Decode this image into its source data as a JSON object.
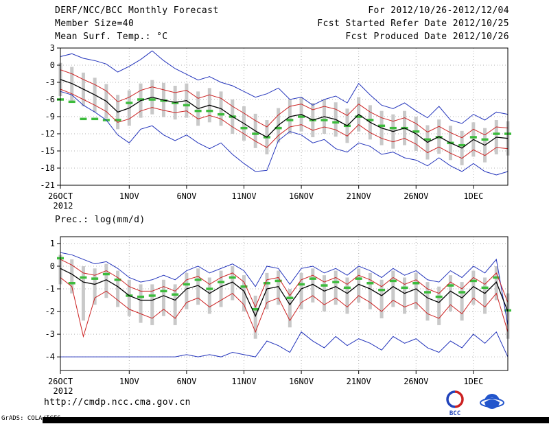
{
  "header": {
    "title": "DERF/NCC/BCC Monthly Forecast",
    "member_size": "Member Size=40",
    "for_range": "For 2012/10/26-2012/12/04",
    "refer_date": "Fcst Started Refer Date 2012/10/25",
    "produced_date": "Fcst Produced Date 2012/10/26"
  },
  "chart_data": [
    {
      "type": "line",
      "title": "Mean Surf. Temp.: °C",
      "xlabel": "",
      "ylabel": "°C",
      "ylim": [
        -21,
        3
      ],
      "yticks": [
        3,
        0,
        -3,
        -6,
        -9,
        -12,
        -15,
        -18,
        -21
      ],
      "grid": true,
      "legend": "none",
      "x_count": 40,
      "xticks": [
        {
          "pos": 0,
          "label": "26OCT",
          "sublabel": "2012"
        },
        {
          "pos": 6,
          "label": "1NOV"
        },
        {
          "pos": 11,
          "label": "6NOV"
        },
        {
          "pos": 16,
          "label": "11NOV"
        },
        {
          "pos": 21,
          "label": "16NOV"
        },
        {
          "pos": 26,
          "label": "21NOV"
        },
        {
          "pos": 31,
          "label": "26NOV"
        },
        {
          "pos": 36,
          "label": "1DEC"
        }
      ],
      "grid_color": "#b0b0b0",
      "bars": {
        "name": "ensemble-spread",
        "color": "#c9c9c9",
        "hi": [
          0.4,
          -0.3,
          -1.3,
          -2.2,
          -3.3,
          -5.2,
          -4.4,
          -3.2,
          -2.6,
          -3.1,
          -3.6,
          -3.2,
          -4.6,
          -4.0,
          -4.6,
          -6.0,
          -7.2,
          -8.5,
          -9.6,
          -7.5,
          -6.0,
          -5.6,
          -6.6,
          -6.0,
          -6.5,
          -7.6,
          -5.6,
          -7.0,
          -8.0,
          -8.6,
          -8.0,
          -9.0,
          -10.5,
          -9.5,
          -10.6,
          -11.5,
          -10.0,
          -11.0,
          -9.6,
          -9.8
        ],
        "lo": [
          -5.4,
          -6.2,
          -7.2,
          -8.2,
          -9.3,
          -11.2,
          -10.6,
          -9.2,
          -8.6,
          -9.1,
          -9.5,
          -9.2,
          -10.6,
          -10.0,
          -10.6,
          -12.0,
          -13.2,
          -14.5,
          -15.6,
          -13.5,
          -12.0,
          -11.6,
          -12.6,
          -12.0,
          -12.5,
          -13.6,
          -11.6,
          -13.0,
          -14.0,
          -14.6,
          -14.0,
          -15.0,
          -16.5,
          -15.5,
          -16.6,
          -17.5,
          -16.0,
          -17.0,
          -15.6,
          -15.8
        ]
      },
      "series": [
        {
          "name": "ensemble-max",
          "color": "#2233bb",
          "style": "solid",
          "width": 1,
          "values": [
            1.5,
            2.0,
            1.2,
            0.8,
            0.2,
            -1.2,
            -0.2,
            1.0,
            2.5,
            0.8,
            -0.6,
            -1.6,
            -2.6,
            -2.0,
            -3.0,
            -3.6,
            -4.6,
            -5.6,
            -5.0,
            -4.0,
            -6.0,
            -5.6,
            -7.0,
            -6.0,
            -5.4,
            -6.6,
            -3.2,
            -5.2,
            -7.0,
            -7.6,
            -6.6,
            -8.0,
            -9.2,
            -7.2,
            -9.6,
            -10.2,
            -8.6,
            -9.6,
            -8.2,
            -8.6
          ]
        },
        {
          "name": "upper-quartile",
          "color": "#cc2222",
          "style": "solid",
          "width": 1,
          "values": [
            -0.8,
            -1.5,
            -2.5,
            -3.4,
            -4.5,
            -6.4,
            -5.6,
            -4.4,
            -3.8,
            -4.3,
            -4.8,
            -4.4,
            -5.8,
            -5.2,
            -5.8,
            -7.2,
            -8.4,
            -9.7,
            -10.8,
            -8.7,
            -7.2,
            -6.8,
            -7.8,
            -7.2,
            -7.7,
            -8.8,
            -6.8,
            -8.2,
            -9.2,
            -9.8,
            -9.2,
            -10.2,
            -11.7,
            -10.7,
            -11.8,
            -12.7,
            -11.2,
            -12.2,
            -10.8,
            -11.0
          ]
        },
        {
          "name": "ensemble-mean",
          "color": "#000000",
          "style": "solid",
          "width": 1.3,
          "values": [
            -2.5,
            -3.2,
            -4.2,
            -5.2,
            -6.3,
            -8.2,
            -7.5,
            -6.2,
            -5.6,
            -6.1,
            -6.5,
            -6.2,
            -7.6,
            -7.0,
            -7.6,
            -9.0,
            -10.2,
            -11.5,
            -12.6,
            -10.5,
            -9.0,
            -8.6,
            -9.6,
            -9.0,
            -9.5,
            -10.6,
            -8.6,
            -10.0,
            -11.0,
            -11.6,
            -11.0,
            -12.0,
            -13.5,
            -12.5,
            -13.6,
            -14.5,
            -13.0,
            -14.0,
            -12.6,
            -12.8
          ]
        },
        {
          "name": "lower-quartile",
          "color": "#cc2222",
          "style": "solid",
          "width": 1,
          "values": [
            -4.2,
            -5.0,
            -6.0,
            -7.0,
            -8.1,
            -10.0,
            -9.4,
            -8.0,
            -7.4,
            -7.9,
            -8.3,
            -8.0,
            -9.4,
            -8.8,
            -9.4,
            -10.8,
            -12.0,
            -13.3,
            -14.4,
            -12.3,
            -10.8,
            -10.4,
            -11.4,
            -10.8,
            -11.3,
            -12.4,
            -10.4,
            -11.8,
            -12.8,
            -13.4,
            -12.8,
            -13.8,
            -15.3,
            -14.3,
            -15.4,
            -16.3,
            -14.8,
            -15.8,
            -14.4,
            -14.6
          ]
        },
        {
          "name": "ensemble-min",
          "color": "#2233bb",
          "style": "solid",
          "width": 1,
          "values": [
            -4.6,
            -5.2,
            -7.0,
            -8.2,
            -9.6,
            -12.2,
            -13.6,
            -11.2,
            -10.6,
            -12.2,
            -13.2,
            -12.2,
            -13.6,
            -14.6,
            -13.6,
            -15.6,
            -17.2,
            -18.6,
            -18.4,
            -13.2,
            -11.6,
            -12.2,
            -13.6,
            -13.0,
            -14.6,
            -15.2,
            -13.6,
            -14.2,
            -15.6,
            -15.2,
            -16.2,
            -16.6,
            -17.6,
            -16.2,
            -17.6,
            -18.6,
            -17.2,
            -18.6,
            -19.2,
            -18.6
          ]
        },
        {
          "name": "reference-dashes",
          "color": "#3cbb3c",
          "style": "dash",
          "width": 3.5,
          "values": [
            -6.0,
            -6.4,
            -9.4,
            -9.4,
            -9.6,
            -9.6,
            -6.6,
            -6.0,
            -6.0,
            -6.2,
            -6.6,
            -7.0,
            -8.0,
            -8.0,
            -8.6,
            -9.0,
            -11.0,
            -12.0,
            -12.6,
            -11.0,
            -9.6,
            -9.0,
            -9.6,
            -9.6,
            -10.0,
            -10.6,
            -9.0,
            -9.6,
            -10.6,
            -11.0,
            -11.0,
            -11.6,
            -13.0,
            -12.6,
            -13.6,
            -14.0,
            -12.6,
            -13.0,
            -12.0,
            -12.0
          ]
        }
      ]
    },
    {
      "type": "line",
      "title": "Prec.: log(mm/d)",
      "xlabel": "",
      "ylabel": "log(mm/d)",
      "ylim": [
        -4.6,
        1.3
      ],
      "yticks": [
        1,
        0,
        -1,
        -2,
        -3,
        -4
      ],
      "grid": true,
      "legend": "none",
      "x_count": 40,
      "xticks": [
        {
          "pos": 0,
          "label": "26OCT",
          "sublabel": "2012"
        },
        {
          "pos": 6,
          "label": "1NOV"
        },
        {
          "pos": 11,
          "label": "6NOV"
        },
        {
          "pos": 16,
          "label": "11NOV"
        },
        {
          "pos": 21,
          "label": "16NOV"
        },
        {
          "pos": 26,
          "label": "21NOV"
        },
        {
          "pos": 31,
          "label": "26NOV"
        },
        {
          "pos": 36,
          "label": "1DEC"
        }
      ],
      "grid_color": "#b0b0b0",
      "bars": {
        "name": "ensemble-spread",
        "color": "#c9c9c9",
        "hi": [
          0.5,
          0.3,
          0.0,
          -0.1,
          0.1,
          -0.2,
          -0.6,
          -0.8,
          -0.8,
          -0.6,
          -0.8,
          -0.3,
          -0.1,
          -0.5,
          -0.2,
          0.0,
          -0.4,
          -1.3,
          -0.3,
          -0.2,
          -1.0,
          -0.3,
          -0.1,
          -0.4,
          -0.2,
          -0.5,
          -0.1,
          -0.3,
          -0.6,
          -0.2,
          -0.5,
          -0.3,
          -0.7,
          -0.9,
          -0.4,
          -0.7,
          -0.2,
          -0.5,
          0.0,
          -1.2
        ],
        "lo": [
          -0.8,
          -1.2,
          -2.4,
          -1.7,
          -1.4,
          -1.8,
          -2.2,
          -2.5,
          -2.6,
          -2.2,
          -2.6,
          -1.9,
          -1.7,
          -2.1,
          -1.8,
          -1.5,
          -2.0,
          -3.2,
          -1.9,
          -1.7,
          -2.7,
          -1.9,
          -1.6,
          -2.0,
          -1.7,
          -2.1,
          -1.6,
          -1.9,
          -2.3,
          -1.8,
          -2.1,
          -1.9,
          -2.4,
          -2.6,
          -2.0,
          -2.4,
          -1.7,
          -2.1,
          -1.5,
          -3.2
        ]
      },
      "series": [
        {
          "name": "ensemble-max",
          "color": "#2233bb",
          "style": "solid",
          "width": 1,
          "values": [
            0.6,
            0.5,
            0.3,
            0.1,
            0.2,
            -0.1,
            -0.5,
            -0.7,
            -0.6,
            -0.4,
            -0.6,
            -0.2,
            0.0,
            -0.3,
            -0.1,
            0.1,
            -0.2,
            -0.9,
            0.0,
            -0.1,
            -0.8,
            -0.1,
            0.0,
            -0.3,
            -0.1,
            -0.4,
            0.0,
            -0.2,
            -0.5,
            -0.1,
            -0.4,
            -0.2,
            -0.6,
            -0.7,
            -0.2,
            -0.5,
            0.0,
            -0.3,
            0.3,
            -2.6
          ]
        },
        {
          "name": "upper-quartile",
          "color": "#cc2222",
          "style": "solid",
          "width": 1,
          "values": [
            0.3,
            0.05,
            -0.3,
            -0.4,
            -0.2,
            -0.5,
            -0.9,
            -1.1,
            -1.1,
            -0.9,
            -1.1,
            -0.6,
            -0.45,
            -0.8,
            -0.5,
            -0.3,
            -0.7,
            -1.8,
            -0.6,
            -0.5,
            -1.3,
            -0.6,
            -0.4,
            -0.7,
            -0.5,
            -0.8,
            -0.4,
            -0.6,
            -0.9,
            -0.5,
            -0.8,
            -0.6,
            -1.0,
            -1.2,
            -0.7,
            -1.0,
            -0.5,
            -0.8,
            -0.3,
            -1.6
          ]
        },
        {
          "name": "ensemble-mean",
          "color": "#000000",
          "style": "solid",
          "width": 1.3,
          "values": [
            -0.1,
            -0.35,
            -0.7,
            -0.8,
            -0.6,
            -0.9,
            -1.3,
            -1.5,
            -1.5,
            -1.3,
            -1.5,
            -1.0,
            -0.85,
            -1.2,
            -0.9,
            -0.7,
            -1.1,
            -2.2,
            -1.0,
            -0.9,
            -1.7,
            -1.0,
            -0.8,
            -1.1,
            -0.9,
            -1.2,
            -0.8,
            -1.0,
            -1.3,
            -0.9,
            -1.2,
            -1.0,
            -1.4,
            -1.6,
            -1.1,
            -1.4,
            -0.9,
            -1.2,
            -0.7,
            -2.0
          ]
        },
        {
          "name": "lower-quartile",
          "color": "#cc2222",
          "style": "solid",
          "width": 1,
          "values": [
            -0.5,
            -0.9,
            -3.1,
            -1.4,
            -1.1,
            -1.5,
            -1.9,
            -2.1,
            -2.3,
            -1.9,
            -2.3,
            -1.6,
            -1.4,
            -1.8,
            -1.5,
            -1.2,
            -1.7,
            -2.9,
            -1.6,
            -1.4,
            -2.4,
            -1.6,
            -1.3,
            -1.7,
            -1.4,
            -1.8,
            -1.3,
            -1.6,
            -2.0,
            -1.5,
            -1.8,
            -1.6,
            -2.1,
            -2.3,
            -1.7,
            -2.1,
            -1.4,
            -1.8,
            -1.2,
            -2.9
          ]
        },
        {
          "name": "ensemble-min",
          "color": "#2233bb",
          "style": "solid",
          "width": 1,
          "values": [
            -4.0,
            -4.0,
            -4.0,
            -4.0,
            -4.0,
            -4.0,
            -4.0,
            -4.0,
            -4.0,
            -4.0,
            -4.0,
            -3.9,
            -4.0,
            -3.9,
            -4.0,
            -3.8,
            -3.9,
            -4.0,
            -3.3,
            -3.5,
            -3.8,
            -2.9,
            -3.3,
            -3.6,
            -3.1,
            -3.5,
            -3.2,
            -3.4,
            -3.7,
            -3.1,
            -3.4,
            -3.2,
            -3.6,
            -3.8,
            -3.3,
            -3.6,
            -3.0,
            -3.4,
            -2.9,
            -4.0
          ]
        },
        {
          "name": "reference-dashes",
          "color": "#3cbb3c",
          "style": "dash",
          "width": 3.5,
          "values": [
            0.35,
            -0.75,
            -0.5,
            -0.55,
            -0.35,
            -0.6,
            -1.3,
            -1.35,
            -1.3,
            -1.1,
            -1.25,
            -0.8,
            -0.6,
            -1.0,
            -0.7,
            -0.5,
            -0.9,
            -1.9,
            -0.75,
            -0.65,
            -1.4,
            -0.8,
            -0.55,
            -0.85,
            -0.7,
            -0.95,
            -0.55,
            -0.75,
            -1.05,
            -0.65,
            -0.95,
            -0.75,
            -1.15,
            -1.35,
            -0.85,
            -1.15,
            -0.65,
            -0.95,
            -0.5,
            -1.95
          ]
        }
      ]
    }
  ],
  "footer": {
    "url": "http://cmdp.ncc.cma.gov.cn",
    "grads_credit": "GrADS: COLA/IGES",
    "logos": [
      {
        "name": "bcc-logo",
        "label": "BCC",
        "colors": [
          "#cc2222",
          "#2244bb"
        ]
      },
      {
        "name": "cma-logo",
        "label": "",
        "colors": [
          "#2255cc"
        ]
      }
    ]
  }
}
